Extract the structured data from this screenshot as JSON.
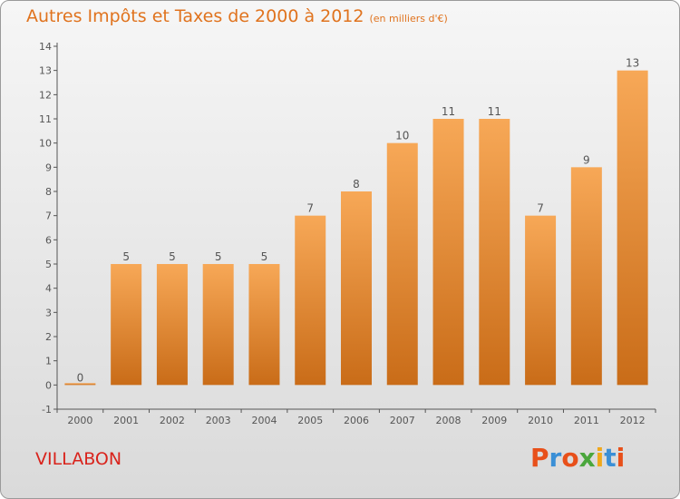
{
  "header": {
    "title": "Autres Impôts et Taxes de 2000 à 2012",
    "unit": "(en milliers d'€)"
  },
  "footer": {
    "town": "VILLABON",
    "logo_text": "Proxiti",
    "logo_colors": [
      "#e8501a",
      "#3a8fd6",
      "#e8501a",
      "#4aa63c",
      "#f0a81c",
      "#3a8fd6",
      "#e8501a"
    ]
  },
  "colors": {
    "bar_light": "#f7a857",
    "bar_dark": "#c96c18",
    "title": "#e0731e",
    "axis": "#555555",
    "label": "#555555"
  },
  "chart_data": {
    "type": "bar",
    "categories": [
      "2000",
      "2001",
      "2002",
      "2003",
      "2004",
      "2005",
      "2006",
      "2007",
      "2008",
      "2009",
      "2010",
      "2011",
      "2012"
    ],
    "values": [
      0,
      5,
      5,
      5,
      5,
      7,
      8,
      10,
      11,
      11,
      7,
      9,
      13
    ],
    "ylim": [
      -1,
      14
    ],
    "yticks": [
      -1,
      0,
      1,
      2,
      3,
      4,
      5,
      6,
      7,
      8,
      9,
      10,
      11,
      12,
      13,
      14
    ],
    "grid": false,
    "title": "Autres Impôts et Taxes de 2000 à 2012",
    "xlabel": "",
    "ylabel": ""
  }
}
